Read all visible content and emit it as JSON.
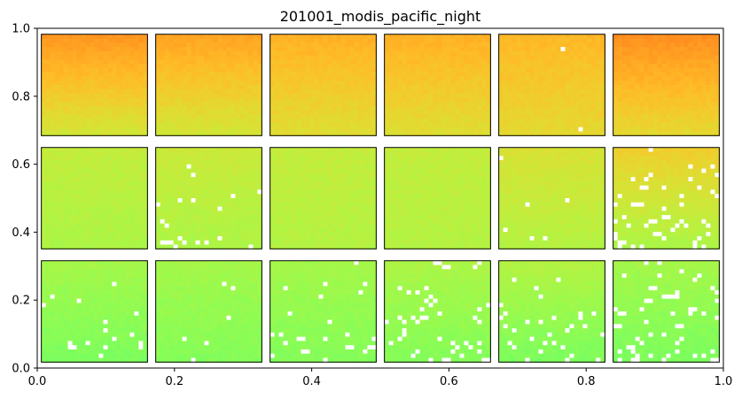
{
  "chart_data": {
    "type": "heatmap",
    "title": "201001_modis_pacific_night",
    "xlabel": "",
    "ylabel": "",
    "xlim": [
      0.0,
      1.0
    ],
    "ylim": [
      0.0,
      1.0
    ],
    "x_ticks": [
      "0.0",
      "0.2",
      "0.4",
      "0.6",
      "0.8",
      "1.0"
    ],
    "y_ticks": [
      "0.0",
      "0.2",
      "0.4",
      "0.6",
      "0.8",
      "1.0"
    ],
    "grid": false,
    "colormap": "turbo",
    "missing_color": "#ffffff",
    "grid_rows": 3,
    "grid_cols": 6,
    "panels": [
      {
        "row": 0,
        "col": 0,
        "top": 0.72,
        "bottom": 0.58,
        "missing": 0.0
      },
      {
        "row": 0,
        "col": 1,
        "top": 0.7,
        "bottom": 0.58,
        "missing": 0.0
      },
      {
        "row": 0,
        "col": 2,
        "top": 0.68,
        "bottom": 0.6,
        "missing": 0.0
      },
      {
        "row": 0,
        "col": 3,
        "top": 0.68,
        "bottom": 0.6,
        "missing": 0.0
      },
      {
        "row": 0,
        "col": 4,
        "top": 0.67,
        "bottom": 0.61,
        "missing": 0.002
      },
      {
        "row": 0,
        "col": 5,
        "top": 0.73,
        "bottom": 0.61,
        "missing": 0.0
      },
      {
        "row": 1,
        "col": 0,
        "top": 0.56,
        "bottom": 0.53,
        "missing": 0.0
      },
      {
        "row": 1,
        "col": 1,
        "top": 0.57,
        "bottom": 0.53,
        "missing": 0.03
      },
      {
        "row": 1,
        "col": 2,
        "top": 0.56,
        "bottom": 0.54,
        "missing": 0.0
      },
      {
        "row": 1,
        "col": 3,
        "top": 0.56,
        "bottom": 0.54,
        "missing": 0.002
      },
      {
        "row": 1,
        "col": 4,
        "top": 0.59,
        "bottom": 0.54,
        "missing": 0.01
      },
      {
        "row": 1,
        "col": 5,
        "top": 0.63,
        "bottom": 0.53,
        "missing": 0.07
      },
      {
        "row": 2,
        "col": 0,
        "top": 0.52,
        "bottom": 0.47,
        "missing": 0.03
      },
      {
        "row": 2,
        "col": 1,
        "top": 0.52,
        "bottom": 0.48,
        "missing": 0.01
      },
      {
        "row": 2,
        "col": 2,
        "top": 0.52,
        "bottom": 0.48,
        "missing": 0.04
      },
      {
        "row": 2,
        "col": 3,
        "top": 0.53,
        "bottom": 0.48,
        "missing": 0.06
      },
      {
        "row": 2,
        "col": 4,
        "top": 0.54,
        "bottom": 0.47,
        "missing": 0.05
      },
      {
        "row": 2,
        "col": 5,
        "top": 0.52,
        "bottom": 0.47,
        "missing": 0.07
      }
    ]
  }
}
